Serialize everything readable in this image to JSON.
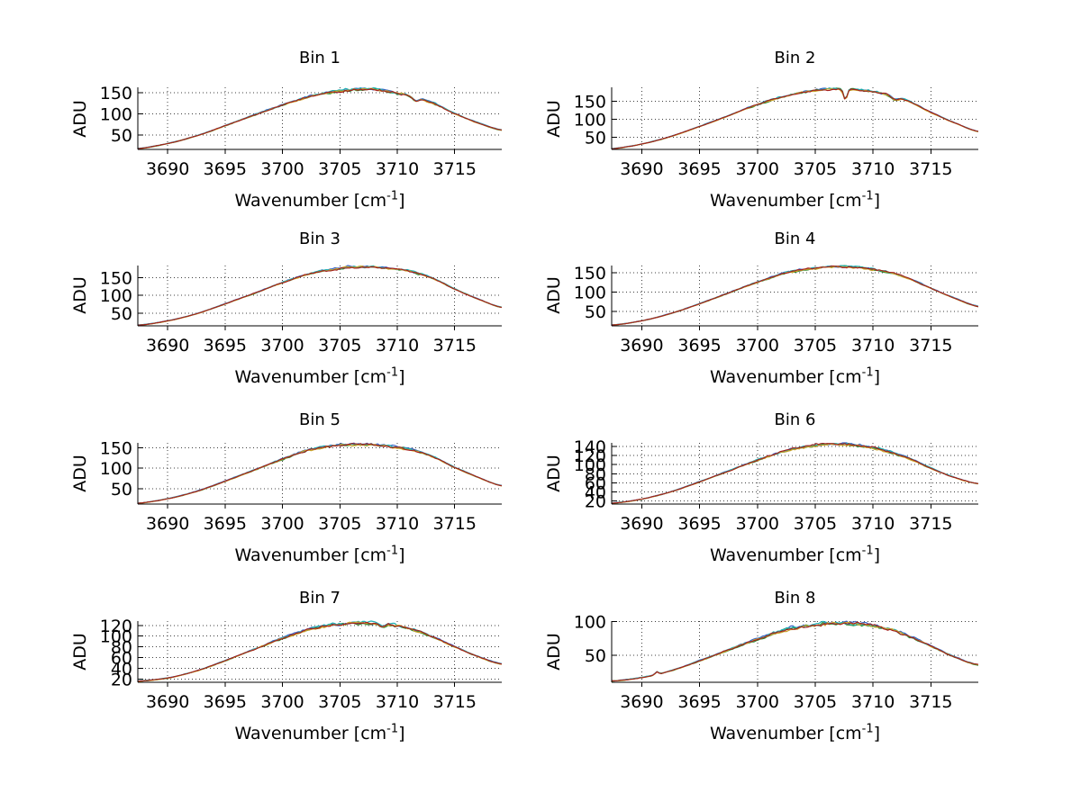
{
  "figure": {
    "description": "Eight-panel spectra figure, bins 1-8, noisy bell-shaped curves",
    "background": "#ffffff"
  },
  "labels": {
    "ylabel": "ADU",
    "xlabel_base": "Wavenumber [cm",
    "xlabel_sup": "-1",
    "xlabel_end": "]"
  },
  "style": {
    "axis_color": "#000000",
    "grid_color": "#3f3f3f",
    "text_color": "#000000",
    "series_colors": [
      "#3b64c4",
      "#2f8b33",
      "#1fb0b4",
      "#c9a227",
      "#a51c1c"
    ],
    "series_note": "several nearly identical overlaid traces per panel; dark red trace on top with blue/green/cyan/yellow fringes visible at the noisy peak"
  },
  "chart_data": [
    {
      "type": "line",
      "title": "Bin 1",
      "xlabel": "Wavenumber [cm^-1]",
      "ylabel": "ADU",
      "xlim": [
        3687.4,
        3719.1
      ],
      "ylim": [
        16,
        163
      ],
      "xticks": [
        3690,
        3695,
        3700,
        3705,
        3710,
        3715
      ],
      "yticks": [
        50,
        100,
        150
      ],
      "grid": true,
      "anchors": {
        "x": [
          3687.4,
          3690,
          3692.5,
          3695,
          3697.5,
          3700,
          3702.5,
          3705,
          3707,
          3709,
          3711,
          3713,
          3715,
          3717,
          3719.1
        ],
        "y": [
          18,
          30,
          48,
          72,
          97,
          121,
          142,
          154,
          159,
          155,
          143,
          127,
          101,
          79,
          62
        ]
      },
      "dips": [
        {
          "x": 3711.6,
          "depth": 8,
          "width": 0.35
        }
      ]
    },
    {
      "type": "line",
      "title": "Bin 2",
      "xlabel": "Wavenumber [cm^-1]",
      "ylabel": "ADU",
      "xlim": [
        3687.4,
        3719.1
      ],
      "ylim": [
        16,
        189
      ],
      "xticks": [
        3690,
        3695,
        3700,
        3705,
        3710,
        3715
      ],
      "yticks": [
        50,
        100,
        150
      ],
      "grid": true,
      "anchors": {
        "x": [
          3687.4,
          3690,
          3692.5,
          3695,
          3697.5,
          3700,
          3702.5,
          3705,
          3707,
          3709,
          3711,
          3713,
          3715,
          3717,
          3719.1
        ],
        "y": [
          18,
          31,
          52,
          80,
          110,
          141,
          165,
          180,
          185,
          181,
          171,
          151,
          119,
          91,
          66
        ]
      },
      "dips": [
        {
          "x": 3707.6,
          "depth": 30,
          "width": 0.22
        },
        {
          "x": 3711.9,
          "depth": 9,
          "width": 0.4
        }
      ]
    },
    {
      "type": "line",
      "title": "Bin 3",
      "xlabel": "Wavenumber [cm^-1]",
      "ylabel": "ADU",
      "xlim": [
        3687.4,
        3719.1
      ],
      "ylim": [
        14,
        184
      ],
      "xticks": [
        3690,
        3695,
        3700,
        3705,
        3710,
        3715
      ],
      "yticks": [
        50,
        100,
        150
      ],
      "grid": true,
      "anchors": {
        "x": [
          3687.4,
          3690,
          3692.5,
          3695,
          3697.5,
          3700,
          3702.5,
          3705,
          3707,
          3709,
          3711,
          3713,
          3715,
          3717,
          3719.1
        ],
        "y": [
          16,
          28,
          48,
          76,
          105,
          136,
          162,
          176,
          180,
          177,
          168,
          149,
          118,
          90,
          66
        ]
      },
      "dips": []
    },
    {
      "type": "line",
      "title": "Bin 4",
      "xlabel": "Wavenumber [cm^-1]",
      "ylabel": "ADU",
      "xlim": [
        3687.4,
        3719.1
      ],
      "ylim": [
        13,
        169
      ],
      "xticks": [
        3690,
        3695,
        3700,
        3705,
        3710,
        3715
      ],
      "yticks": [
        50,
        100,
        150
      ],
      "grid": true,
      "anchors": {
        "x": [
          3687.4,
          3690,
          3692.5,
          3695,
          3697.5,
          3700,
          3702.5,
          3705,
          3707,
          3709,
          3711,
          3713,
          3715,
          3717,
          3719.1
        ],
        "y": [
          15,
          26,
          45,
          70,
          98,
          126,
          150,
          162,
          166,
          163,
          154,
          137,
          110,
          85,
          63
        ]
      },
      "dips": []
    },
    {
      "type": "line",
      "title": "Bin 5",
      "xlabel": "Wavenumber [cm^-1]",
      "ylabel": "ADU",
      "xlim": [
        3687.4,
        3719.1
      ],
      "ylim": [
        12,
        162
      ],
      "xticks": [
        3690,
        3695,
        3700,
        3705,
        3710,
        3715
      ],
      "yticks": [
        50,
        100,
        150
      ],
      "grid": true,
      "anchors": {
        "x": [
          3687.4,
          3690,
          3692.5,
          3695,
          3697.5,
          3700,
          3702.5,
          3705,
          3707,
          3709,
          3711,
          3713,
          3715,
          3717,
          3719.1
        ],
        "y": [
          14,
          25,
          43,
          68,
          95,
          122,
          146,
          156,
          159,
          155,
          146,
          129,
          102,
          78,
          57
        ]
      },
      "dips": []
    },
    {
      "type": "line",
      "title": "Bin 6",
      "xlabel": "Wavenumber [cm^-1]",
      "ylabel": "ADU",
      "xlim": [
        3687.4,
        3719.1
      ],
      "ylim": [
        13,
        148
      ],
      "xticks": [
        3690,
        3695,
        3700,
        3705,
        3710,
        3715
      ],
      "yticks": [
        20,
        40,
        60,
        80,
        100,
        120,
        140
      ],
      "grid": true,
      "anchors": {
        "x": [
          3687.4,
          3690,
          3692.5,
          3695,
          3697.5,
          3700,
          3702.5,
          3705,
          3707,
          3709,
          3711,
          3713,
          3715,
          3717,
          3719.1
        ],
        "y": [
          15,
          24,
          40,
          62,
          86,
          110,
          131,
          142,
          145,
          141,
          131,
          115,
          92,
          72,
          58
        ]
      },
      "dips": []
    },
    {
      "type": "line",
      "title": "Bin 7",
      "xlabel": "Wavenumber [cm^-1]",
      "ylabel": "ADU",
      "xlim": [
        3687.4,
        3719.1
      ],
      "ylim": [
        14,
        128
      ],
      "xticks": [
        3690,
        3695,
        3700,
        3705,
        3710,
        3715
      ],
      "yticks": [
        20,
        40,
        60,
        80,
        100,
        120
      ],
      "grid": true,
      "anchors": {
        "x": [
          3687.4,
          3690,
          3692.5,
          3695,
          3697.5,
          3700,
          3702.5,
          3705,
          3707,
          3709,
          3711,
          3713,
          3715,
          3717,
          3719.1
        ],
        "y": [
          16,
          22,
          35,
          54,
          75,
          96,
          114,
          122,
          125,
          122,
          114,
          99,
          80,
          62,
          48
        ]
      },
      "dips": [
        {
          "x": 3708.7,
          "depth": 6,
          "width": 0.35
        }
      ]
    },
    {
      "type": "line",
      "title": "Bin 8",
      "xlabel": "Wavenumber [cm^-1]",
      "ylabel": "ADU",
      "xlim": [
        3687.4,
        3719.1
      ],
      "ylim": [
        10,
        101
      ],
      "xticks": [
        3690,
        3695,
        3700,
        3705,
        3710,
        3715
      ],
      "yticks": [
        50,
        100
      ],
      "grid": true,
      "anchors": {
        "x": [
          3687.4,
          3690,
          3692.5,
          3695,
          3697.5,
          3700,
          3702.5,
          3705,
          3707,
          3709,
          3711,
          3713,
          3715,
          3717,
          3719.1
        ],
        "y": [
          12,
          17,
          27,
          42,
          58,
          74,
          88,
          95,
          98,
          96,
          90,
          79,
          64,
          48,
          36
        ]
      },
      "dips": [
        {
          "x": 3691.3,
          "depth": -4,
          "width": 0.2
        }
      ]
    }
  ]
}
